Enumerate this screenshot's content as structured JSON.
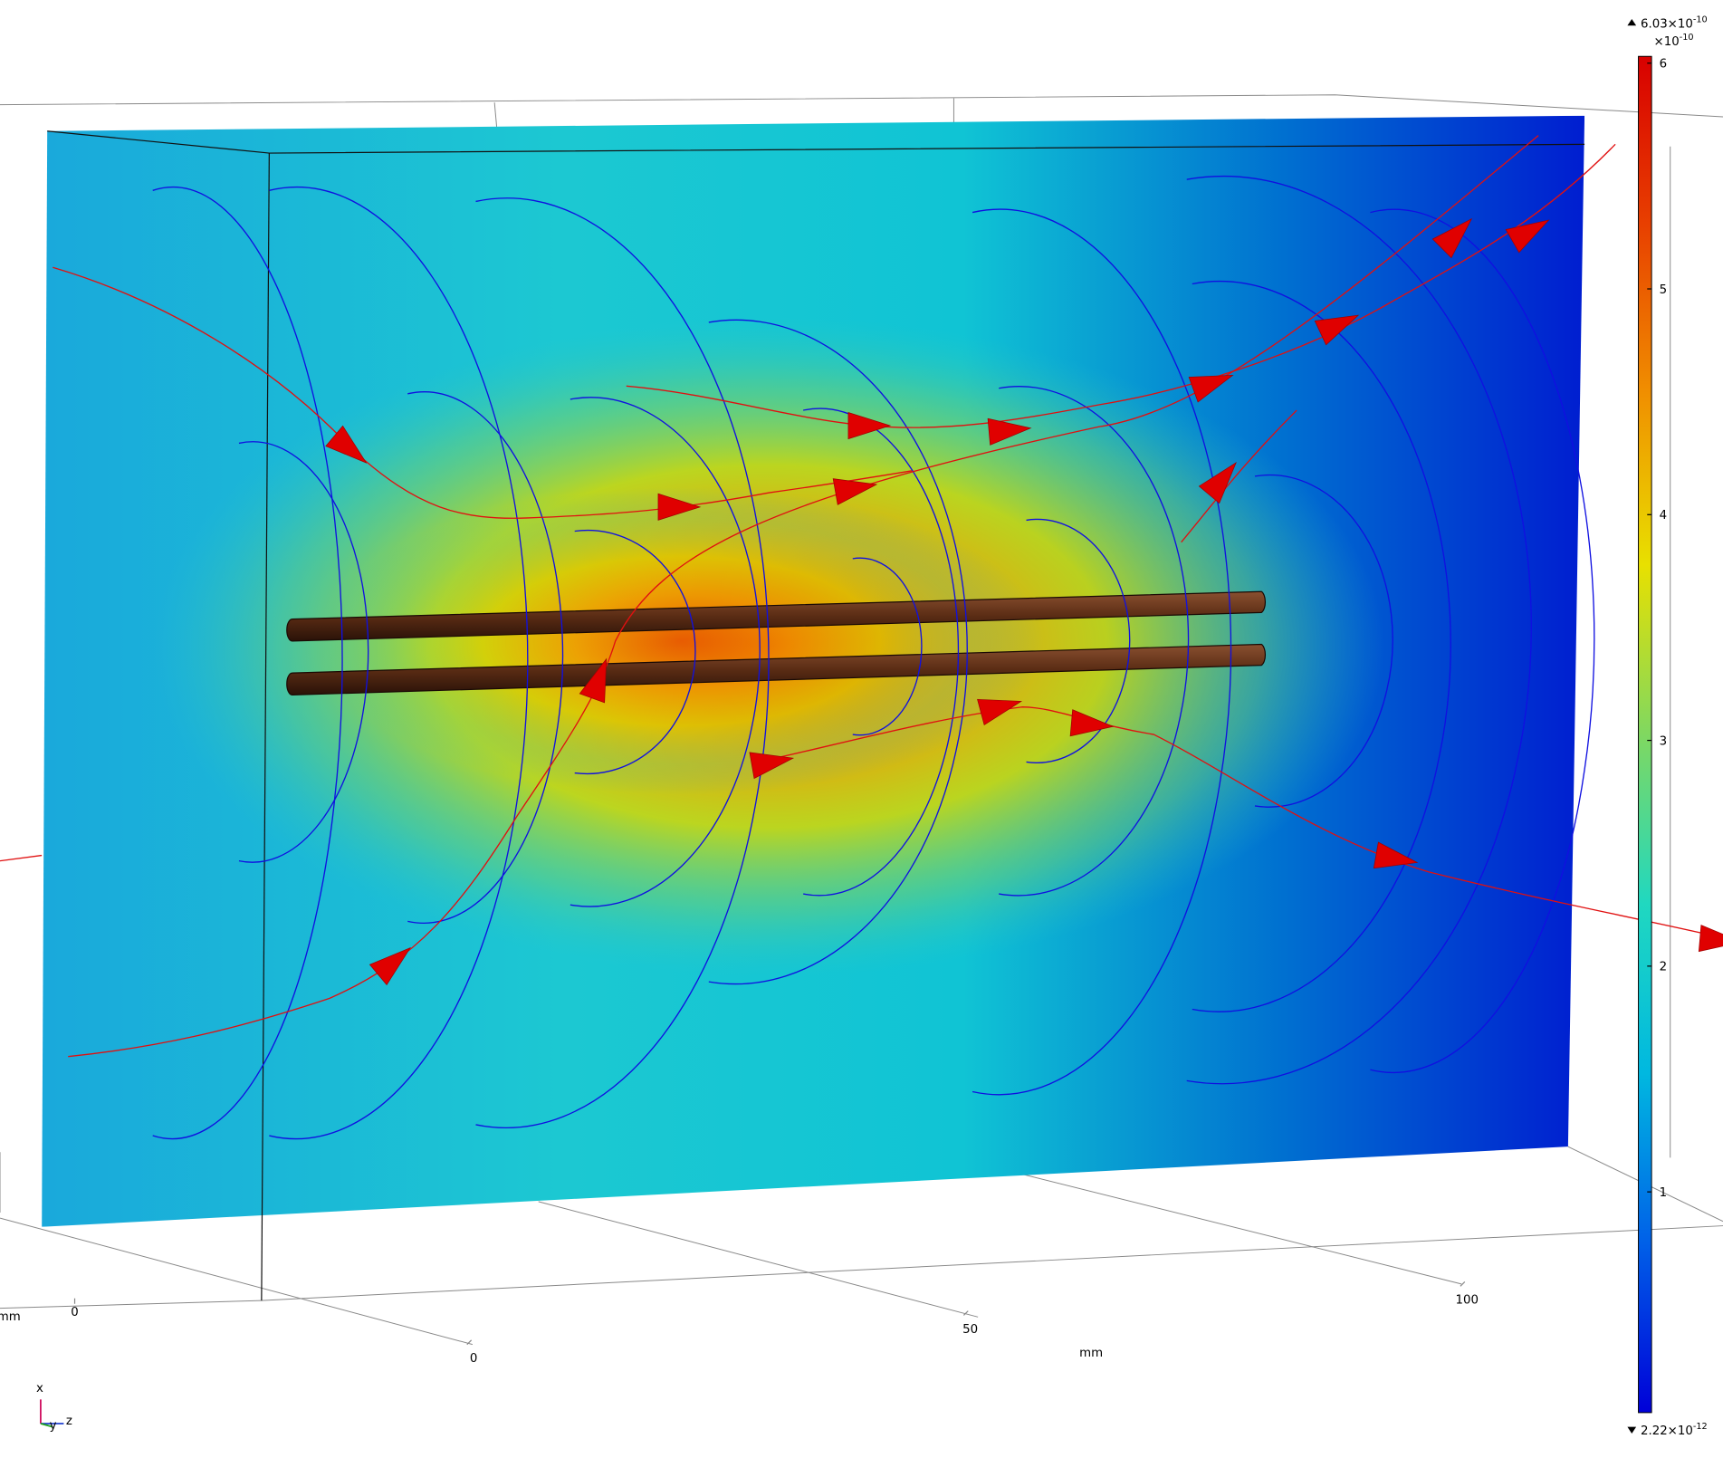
{
  "chart_data": {
    "type": "field-plot",
    "colorbar": {
      "lim": [
        0.0222,
        6.03
      ],
      "ticks": [
        1,
        2,
        3,
        4,
        5,
        6
      ],
      "scale_label": {
        "base": "×10",
        "exponent": "-10"
      },
      "max_label": {
        "base": "6.03×10",
        "exponent": "-10"
      },
      "min_label": {
        "base": "2.22×10",
        "exponent": "-12"
      },
      "colors": [
        "#0000d8",
        "#0060e8",
        "#00b8e0",
        "#20d8c0",
        "#80d860",
        "#e8e000",
        "#f09000",
        "#e84000",
        "#d80000"
      ]
    },
    "axes": {
      "x": {
        "ticks": [
          0,
          50,
          100
        ],
        "unit": "mm"
      },
      "y": {
        "ticks": [
          0
        ],
        "unit": "mm"
      }
    },
    "triad": [
      "x",
      "y",
      "z"
    ]
  }
}
